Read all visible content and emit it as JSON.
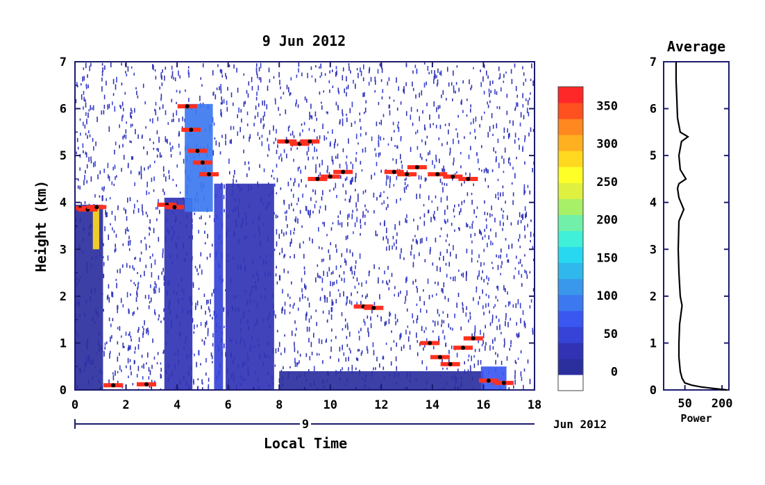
{
  "chart_data": [
    {
      "type": "heatmap",
      "title": "9 Jun 2012",
      "xlabel": "Local Time",
      "ylabel": "Height (km)",
      "xlim": [
        0,
        18
      ],
      "ylim": [
        0,
        7
      ],
      "x_ticks": [
        "0",
        "2",
        "4",
        "6",
        "8",
        "10",
        "12",
        "14",
        "16",
        "18"
      ],
      "y_ticks": [
        "0",
        "1",
        "2",
        "3",
        "4",
        "5",
        "6",
        "7"
      ],
      "date_axis": {
        "day_label": "9",
        "month_label": "Jun 2012"
      },
      "colorbar": {
        "ticks": [
          "0",
          "50",
          "100",
          "150",
          "200",
          "250",
          "300",
          "350"
        ],
        "range": [
          -25,
          375
        ],
        "colors": [
          "#ffffff",
          "#2b2f9e",
          "#3133b4",
          "#3643d6",
          "#3a58f0",
          "#3c79f0",
          "#3a98ec",
          "#30b8ec",
          "#28d8f0",
          "#40f0d8",
          "#70f0a8",
          "#a8f068",
          "#e0f040",
          "#ffff28",
          "#ffd820",
          "#ffb020",
          "#ff8820",
          "#ff5020",
          "#ff2828"
        ]
      },
      "tops": [
        {
          "x": 0.2,
          "y": 3.88
        },
        {
          "x": 0.5,
          "y": 3.85
        },
        {
          "x": 0.85,
          "y": 3.9
        },
        {
          "x": 3.6,
          "y": 3.95
        },
        {
          "x": 3.9,
          "y": 3.9
        },
        {
          "x": 4.4,
          "y": 6.05
        },
        {
          "x": 4.55,
          "y": 5.55
        },
        {
          "x": 4.8,
          "y": 5.1
        },
        {
          "x": 5.0,
          "y": 4.85
        },
        {
          "x": 5.25,
          "y": 4.6
        },
        {
          "x": 8.3,
          "y": 5.3
        },
        {
          "x": 8.8,
          "y": 5.25
        },
        {
          "x": 9.2,
          "y": 5.3
        },
        {
          "x": 9.5,
          "y": 4.5
        },
        {
          "x": 10.0,
          "y": 4.55
        },
        {
          "x": 10.5,
          "y": 4.65
        },
        {
          "x": 11.3,
          "y": 1.78
        },
        {
          "x": 11.7,
          "y": 1.75
        },
        {
          "x": 12.5,
          "y": 4.65
        },
        {
          "x": 13.0,
          "y": 4.6
        },
        {
          "x": 13.4,
          "y": 4.75
        },
        {
          "x": 14.2,
          "y": 4.6
        },
        {
          "x": 14.8,
          "y": 4.55
        },
        {
          "x": 15.4,
          "y": 4.5
        },
        {
          "x": 13.9,
          "y": 1.0
        },
        {
          "x": 14.3,
          "y": 0.7
        },
        {
          "x": 14.7,
          "y": 0.55
        },
        {
          "x": 15.2,
          "y": 0.9
        },
        {
          "x": 15.6,
          "y": 1.1
        },
        {
          "x": 16.2,
          "y": 0.2
        },
        {
          "x": 16.8,
          "y": 0.15
        },
        {
          "x": 1.5,
          "y": 0.1
        },
        {
          "x": 2.8,
          "y": 0.12
        }
      ],
      "bands": [
        {
          "x0": 0.0,
          "x1": 1.1,
          "y0": 0.0,
          "y1": 3.95,
          "level": 1
        },
        {
          "x0": 0.7,
          "x1": 0.95,
          "y0": 3.0,
          "y1": 3.9,
          "level": 14
        },
        {
          "x0": 3.5,
          "x1": 4.6,
          "y0": 0.0,
          "y1": 4.1,
          "level": 2
        },
        {
          "x0": 5.45,
          "x1": 5.8,
          "y0": 0.0,
          "y1": 4.4,
          "level": 3
        },
        {
          "x0": 5.9,
          "x1": 7.8,
          "y0": 0.0,
          "y1": 4.4,
          "level": 2
        },
        {
          "x0": 4.3,
          "x1": 5.4,
          "y0": 3.8,
          "y1": 6.1,
          "level": 5
        },
        {
          "x0": 8.0,
          "x1": 16.0,
          "y0": 0.0,
          "y1": 0.4,
          "level": 1
        },
        {
          "x0": 15.9,
          "x1": 16.9,
          "y0": 0.0,
          "y1": 0.5,
          "level": 4
        }
      ]
    },
    {
      "type": "line",
      "title": "Average",
      "xlabel": "Power",
      "x_ticks": [
        "50",
        "200"
      ],
      "y_ticks": [
        "0",
        "1",
        "2",
        "3",
        "4",
        "5",
        "6",
        "7"
      ],
      "ylim": [
        0,
        7
      ],
      "x": [
        240,
        150,
        95,
        65,
        50,
        45,
        42,
        40,
        40,
        41,
        45,
        42,
        40,
        39,
        40,
        48,
        40,
        38,
        40,
        52,
        42,
        40,
        44,
        56,
        42,
        38,
        37,
        36,
        36
      ],
      "y": [
        0.0,
        0.03,
        0.06,
        0.1,
        0.15,
        0.25,
        0.4,
        0.7,
        1.0,
        1.4,
        1.8,
        2.0,
        2.5,
        3.0,
        3.6,
        3.85,
        4.1,
        4.3,
        4.4,
        4.5,
        4.7,
        5.0,
        5.3,
        5.4,
        5.5,
        5.8,
        6.2,
        6.6,
        7.0
      ]
    }
  ]
}
